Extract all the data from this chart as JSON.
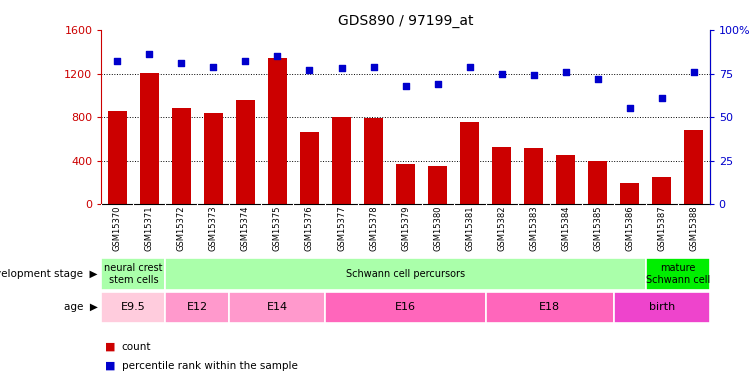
{
  "title": "GDS890 / 97199_at",
  "samples": [
    "GSM15370",
    "GSM15371",
    "GSM15372",
    "GSM15373",
    "GSM15374",
    "GSM15375",
    "GSM15376",
    "GSM15377",
    "GSM15378",
    "GSM15379",
    "GSM15380",
    "GSM15381",
    "GSM15382",
    "GSM15383",
    "GSM15384",
    "GSM15385",
    "GSM15386",
    "GSM15387",
    "GSM15388"
  ],
  "counts": [
    860,
    1210,
    880,
    840,
    960,
    1340,
    660,
    800,
    790,
    370,
    350,
    760,
    530,
    520,
    450,
    400,
    195,
    255,
    680
  ],
  "percentiles": [
    82,
    86,
    81,
    79,
    82,
    85,
    77,
    78,
    79,
    68,
    69,
    79,
    75,
    74,
    76,
    72,
    55,
    61,
    76
  ],
  "bar_color": "#cc0000",
  "dot_color": "#0000cc",
  "ylim_left": [
    0,
    1600
  ],
  "ylim_right": [
    0,
    100
  ],
  "yticks_left": [
    0,
    400,
    800,
    1200,
    1600
  ],
  "yticks_right": [
    0,
    25,
    50,
    75,
    100
  ],
  "ytick_labels_right": [
    "0",
    "25",
    "50",
    "75",
    "100%"
  ],
  "grid_values": [
    400,
    800,
    1200
  ],
  "dev_stage_groups": [
    {
      "label": "neural crest\nstem cells",
      "start": 0,
      "end": 2,
      "color": "#aaffaa"
    },
    {
      "label": "Schwann cell percursors",
      "start": 2,
      "end": 17,
      "color": "#aaffaa"
    },
    {
      "label": "mature\nSchwann cell",
      "start": 17,
      "end": 19,
      "color": "#00ee00"
    }
  ],
  "age_groups": [
    {
      "label": "E9.5",
      "start": 0,
      "end": 2,
      "color": "#ffccdd"
    },
    {
      "label": "E12",
      "start": 2,
      "end": 4,
      "color": "#ff99cc"
    },
    {
      "label": "E14",
      "start": 4,
      "end": 7,
      "color": "#ff99cc"
    },
    {
      "label": "E16",
      "start": 7,
      "end": 12,
      "color": "#ff66bb"
    },
    {
      "label": "E18",
      "start": 12,
      "end": 16,
      "color": "#ff66bb"
    },
    {
      "label": "birth",
      "start": 16,
      "end": 19,
      "color": "#ee44cc"
    }
  ],
  "chart_bg": "#ffffff",
  "xtick_bg": "#d0d0d0"
}
